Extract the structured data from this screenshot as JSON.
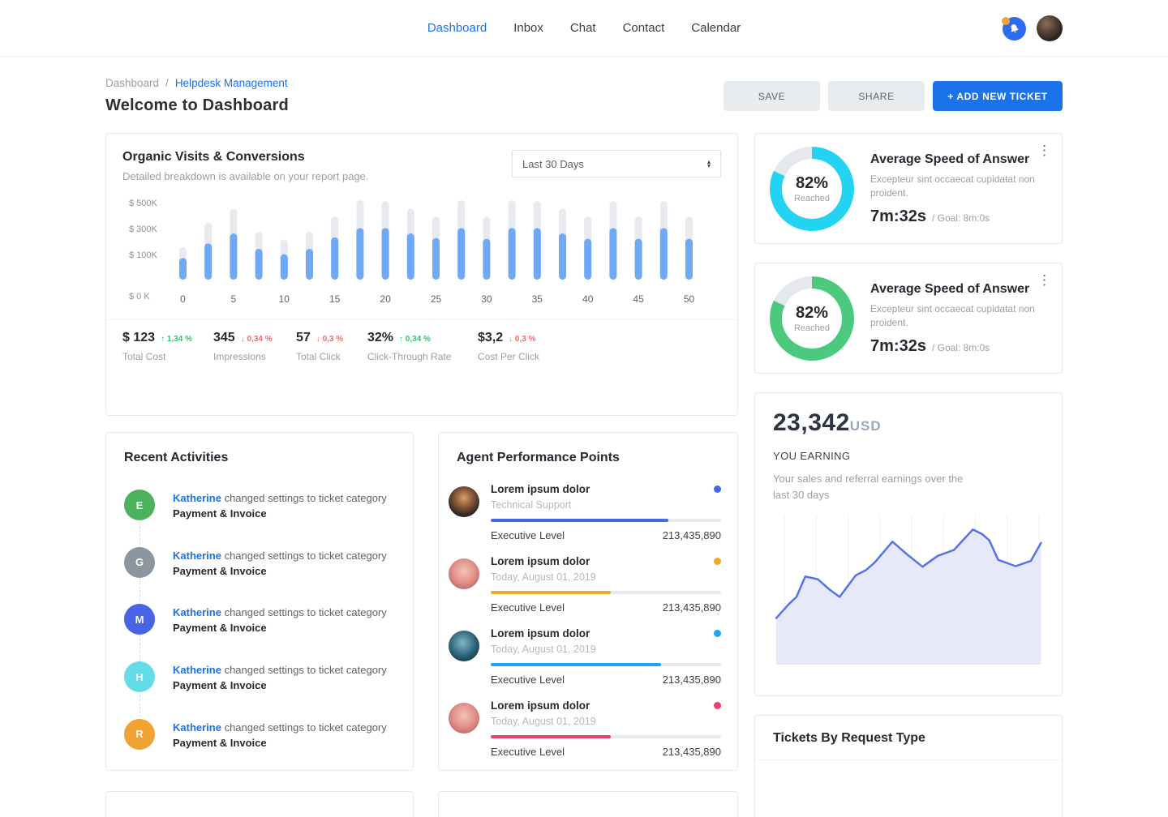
{
  "header": {
    "nav": [
      {
        "label": "Dashboard",
        "active": true
      },
      {
        "label": "Inbox",
        "active": false
      },
      {
        "label": "Chat",
        "active": false
      },
      {
        "label": "Contact",
        "active": false
      },
      {
        "label": "Calendar",
        "active": false
      }
    ],
    "icons": {
      "notification": "bell-icon",
      "profile": "user-avatar"
    }
  },
  "breadcrumb": {
    "root": "Dashboard",
    "separator": "/",
    "current": "Helpdesk Management"
  },
  "page": {
    "title": "Welcome to Dashboard"
  },
  "actions": {
    "save": "SAVE",
    "share": "SHARE",
    "add_ticket": "+ ADD NEW TICKET"
  },
  "organic": {
    "title": "Organic Visits & Conversions",
    "subtitle": "Detailed breakdown is available on your report page.",
    "range_select": "Last 30 Days",
    "chart_data": {
      "type": "bar",
      "title": "Organic Visits & Conversions",
      "x_ticks": [
        "0",
        "5",
        "10",
        "15",
        "20",
        "25",
        "30",
        "35",
        "40",
        "45",
        "50"
      ],
      "y_ticks": [
        "$ 500K",
        "$ 300K",
        "$ 100K",
        "$ 0 K"
      ],
      "x_step_per_bar": 2.5,
      "note": "values are percent of plot height; total = gray target bar, filled = blue value bar",
      "bars": [
        {
          "total": 42,
          "filled": 28
        },
        {
          "total": 74,
          "filled": 47
        },
        {
          "total": 92,
          "filled": 60
        },
        {
          "total": 62,
          "filled": 40
        },
        {
          "total": 52,
          "filled": 33
        },
        {
          "total": 62,
          "filled": 40
        },
        {
          "total": 82,
          "filled": 55
        },
        {
          "total": 103,
          "filled": 67
        },
        {
          "total": 102,
          "filled": 67
        },
        {
          "total": 92,
          "filled": 60
        },
        {
          "total": 82,
          "filled": 54
        },
        {
          "total": 103,
          "filled": 67
        },
        {
          "total": 82,
          "filled": 53
        },
        {
          "total": 103,
          "filled": 67
        },
        {
          "total": 102,
          "filled": 67
        },
        {
          "total": 92,
          "filled": 60
        },
        {
          "total": 82,
          "filled": 53
        },
        {
          "total": 102,
          "filled": 67
        },
        {
          "total": 82,
          "filled": 53
        },
        {
          "total": 102,
          "filled": 67
        },
        {
          "total": 82,
          "filled": 53
        }
      ],
      "colors": {
        "filled": "#6fa8f5",
        "total": "#e7eaee",
        "axis_text": "#8a9097"
      },
      "grid": false,
      "legend": false
    },
    "stats": [
      {
        "value": "$ 123",
        "delta": "1,34 %",
        "direction": "up",
        "label": "Total Cost"
      },
      {
        "value": "345",
        "delta": "0,34 %",
        "direction": "down",
        "label": "Impressions"
      },
      {
        "value": "57",
        "delta": "0,3 %",
        "direction": "down",
        "label": "Total Click"
      },
      {
        "value": "32%",
        "delta": "0,34 %",
        "direction": "up",
        "label": "Click-Through Rate"
      },
      {
        "value": "$3,2",
        "delta": "0,3 %",
        "direction": "down",
        "label": "Cost Per Click"
      }
    ]
  },
  "recent": {
    "title": "Recent Activities",
    "items": [
      {
        "initial": "E",
        "color": "#4cb15c",
        "name": "Katherine",
        "action": "changed settings to ticket category",
        "category": "Payment & Invoice"
      },
      {
        "initial": "G",
        "color": "#8c96a0",
        "name": "Katherine",
        "action": "changed settings to ticket category",
        "category": "Payment & Invoice"
      },
      {
        "initial": "M",
        "color": "#4763e6",
        "name": "Katherine",
        "action": "changed settings to ticket category",
        "category": "Payment & Invoice"
      },
      {
        "initial": "H",
        "color": "#62dde8",
        "name": "Katherine",
        "action": "changed settings to ticket category",
        "category": "Payment & Invoice"
      },
      {
        "initial": "R",
        "color": "#f0a233",
        "name": "Katherine",
        "action": "changed settings to ticket category",
        "category": "Payment & Invoice"
      }
    ]
  },
  "agents": {
    "title": "Agent Performance Points",
    "items": [
      {
        "name": "Lorem ipsum dolor",
        "subtitle": "Technical Support",
        "color": "#4466e8",
        "progress": 77,
        "level": "Executive Level",
        "points": "213,435,890",
        "avatar": "av1"
      },
      {
        "name": "Lorem ipsum dolor",
        "subtitle": "Today, August 01, 2019",
        "color": "#f0a92d",
        "progress": 52,
        "level": "Executive Level",
        "points": "213,435,890",
        "avatar": "av2"
      },
      {
        "name": "Lorem ipsum dolor",
        "subtitle": "Today, August 01, 2019",
        "color": "#1ba6f5",
        "progress": 74,
        "level": "Executive Level",
        "points": "213,435,890",
        "avatar": "av3"
      },
      {
        "name": "Lorem ipsum dolor",
        "subtitle": "Today, August 01, 2019",
        "color": "#ee3e6e",
        "progress": 52,
        "level": "Executive Level",
        "points": "213,435,890",
        "avatar": "av2"
      }
    ]
  },
  "speed_cards": [
    {
      "percent": "82%",
      "value": 82,
      "center_label": "Reached",
      "title": "Average Speed of Answer",
      "desc": "Excepteur sint occaecat cupidatat non proident.",
      "time": "7m:32s",
      "goal": "/ Goal: 8m:0s",
      "color": "#24d3f2",
      "track": "#e5e8ec"
    },
    {
      "percent": "82%",
      "value": 82,
      "center_label": "Reached",
      "title": "Average Speed of Answer",
      "desc": "Excepteur sint occaecat cupidatat non proident.",
      "time": "7m:32s",
      "goal": "/ Goal: 8m:0s",
      "color": "#4dc97d",
      "track": "#e5e8ec"
    }
  ],
  "earnings": {
    "amount": "23,342",
    "currency": "USD",
    "label": "YOU EARNING",
    "desc": "Your sales and referral earnings over the last 30 days",
    "chart_data": {
      "type": "area",
      "x_range": [
        0,
        100
      ],
      "y_range": [
        0,
        100
      ],
      "gridlines": 9,
      "colors": {
        "line": "#5673e8",
        "fill": "#e2e7fa",
        "grid": "#edeff2"
      },
      "points": [
        [
          0,
          33
        ],
        [
          4.8,
          43
        ],
        [
          7.6,
          48
        ],
        [
          10.9,
          62.5
        ],
        [
          15.6,
          60.6
        ],
        [
          20,
          53.3
        ],
        [
          23.8,
          48
        ],
        [
          29.9,
          63.4
        ],
        [
          33.7,
          67
        ],
        [
          37,
          72.5
        ],
        [
          43.7,
          87.2
        ],
        [
          49.3,
          78
        ],
        [
          55,
          69.4
        ],
        [
          60.7,
          77.1
        ],
        [
          66.8,
          81.3
        ],
        [
          73.9,
          95.8
        ],
        [
          77.3,
          92.7
        ],
        [
          80.1,
          88.1
        ],
        [
          83.4,
          74.3
        ],
        [
          90,
          69.8
        ],
        [
          95.7,
          73.5
        ],
        [
          99.5,
          86.3
        ]
      ]
    }
  },
  "tickets": {
    "title": "Tickets By Request Type"
  }
}
